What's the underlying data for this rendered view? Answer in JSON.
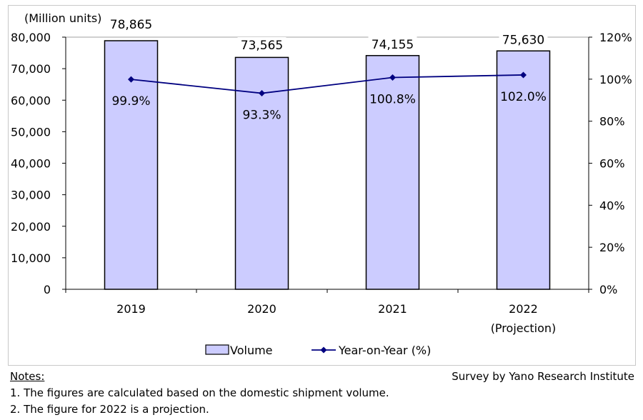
{
  "chart_data": {
    "type": "bar",
    "categories": [
      "2019",
      "2020",
      "2021",
      "2022"
    ],
    "category_sublabels": [
      "",
      "",
      "",
      "(Projection)"
    ],
    "series": [
      {
        "name": "Volume",
        "type": "bar",
        "axis": "left",
        "values": [
          78865,
          73565,
          74155,
          75630
        ],
        "labels": [
          "78,865",
          "73,565",
          "74,155",
          "75,630"
        ]
      },
      {
        "name": "Year-on-Year (%)",
        "type": "line",
        "axis": "right",
        "values": [
          99.9,
          93.3,
          100.8,
          102.0
        ],
        "labels": [
          "99.9%",
          "93.3%",
          "100.8%",
          "102.0%"
        ]
      }
    ],
    "unit_label": "(Million units)",
    "ylim": [
      0,
      80000
    ],
    "y_ticks": [
      "0",
      "10,000",
      "20,000",
      "30,000",
      "40,000",
      "50,000",
      "60,000",
      "70,000",
      "80,000"
    ],
    "y2lim": [
      0,
      120
    ],
    "y2_ticks": [
      "0%",
      "20%",
      "40%",
      "60%",
      "80%",
      "100%",
      "120%"
    ],
    "grid": false,
    "legend_position": "bottom-center",
    "colors": {
      "bar_fill": "#ccccff",
      "bar_stroke": "#000000",
      "line": "#000080"
    }
  },
  "footer": {
    "notes_heading": "Notes:",
    "source": "Survey by Yano Research Institute",
    "notes": [
      "1.  The figures are calculated based on the domestic shipment volume.",
      "2.  The figure for 2022 is a projection."
    ]
  }
}
